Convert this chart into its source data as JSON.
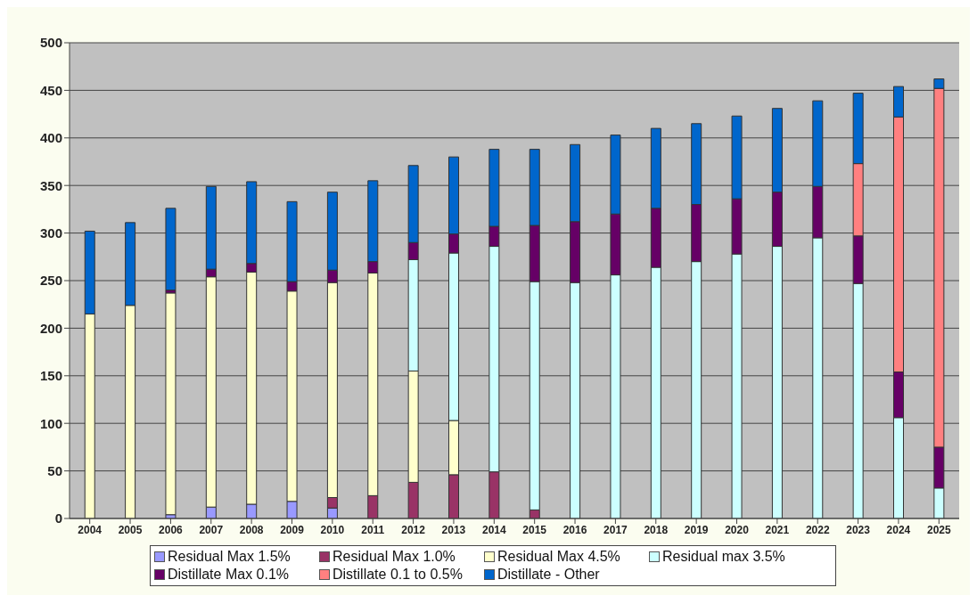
{
  "chart_data": {
    "type": "bar",
    "stacked": true,
    "categories": [
      "2004",
      "2005",
      "2006",
      "2007",
      "2008",
      "2009",
      "2010",
      "2011",
      "2012",
      "2013",
      "2014",
      "2015",
      "2016",
      "2017",
      "2018",
      "2019",
      "2020",
      "2021",
      "2022",
      "2023",
      "2024",
      "2025"
    ],
    "series": [
      {
        "name": "Residual Max 1.5%",
        "color": "#9999ff",
        "values": [
          0,
          0,
          4,
          12,
          15,
          18,
          11,
          0,
          0,
          0,
          0,
          0,
          0,
          0,
          0,
          0,
          0,
          0,
          0,
          0,
          0,
          0
        ]
      },
      {
        "name": "Residual Max 1.0%",
        "color": "#993366",
        "values": [
          0,
          0,
          0,
          0,
          0,
          0,
          11,
          24,
          38,
          46,
          49,
          9,
          0,
          0,
          0,
          0,
          0,
          0,
          0,
          0,
          0,
          0
        ]
      },
      {
        "name": "Residual Max 4.5%",
        "color": "#ffffcc",
        "values": [
          215,
          224,
          233,
          242,
          244,
          221,
          226,
          234,
          117,
          57,
          0,
          0,
          0,
          0,
          0,
          0,
          0,
          0,
          0,
          0,
          0,
          0
        ]
      },
      {
        "name": "Residual max 3.5%",
        "color": "#ccffff",
        "values": [
          0,
          0,
          0,
          0,
          0,
          0,
          0,
          0,
          117,
          176,
          237,
          240,
          248,
          256,
          264,
          270,
          278,
          286,
          295,
          247,
          106,
          32
        ]
      },
      {
        "name": "Distillate Max 0.1%",
        "color": "#660066",
        "values": [
          0,
          0,
          3,
          8,
          9,
          10,
          13,
          12,
          18,
          20,
          21,
          59,
          64,
          64,
          62,
          60,
          58,
          57,
          54,
          50,
          48,
          43
        ]
      },
      {
        "name": "Distillate 0.1 to 0.5%",
        "color": "#ff8080",
        "values": [
          0,
          0,
          0,
          0,
          0,
          0,
          0,
          0,
          0,
          0,
          0,
          0,
          0,
          0,
          0,
          0,
          0,
          0,
          0,
          76,
          268,
          377
        ]
      },
      {
        "name": "Distillate - Other",
        "color": "#0066cc",
        "values": [
          87,
          87,
          86,
          87,
          86,
          84,
          82,
          85,
          81,
          81,
          81,
          80,
          81,
          83,
          84,
          85,
          87,
          88,
          90,
          74,
          32,
          10
        ]
      }
    ],
    "ylim": [
      0,
      500
    ],
    "yticks": [
      0,
      50,
      100,
      150,
      200,
      250,
      300,
      350,
      400,
      450,
      500
    ],
    "grid": "y",
    "legend": "bottom"
  }
}
